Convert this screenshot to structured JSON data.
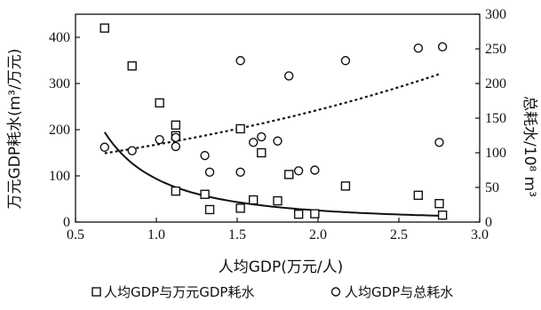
{
  "chart_data": {
    "type": "scatter",
    "xlabel": "人均GDP(万元/人)",
    "ylabel_left": "万元GDP耗水(m³/万元)",
    "ylabel_right": "总耗水/10⁸ m³",
    "xlim": [
      0.5,
      3.0
    ],
    "ylim_left": [
      0,
      450
    ],
    "ylim_right": [
      0,
      300
    ],
    "x_ticks": [
      "0.5",
      "1.0",
      "1.5",
      "2.0",
      "2.5",
      "3.0"
    ],
    "y_left_ticks": [
      "0",
      "100",
      "200",
      "300",
      "400"
    ],
    "y_right_ticks": [
      "0",
      "50",
      "100",
      "150",
      "200",
      "250",
      "300"
    ],
    "grid": false,
    "legend_position": "bottom",
    "series": [
      {
        "name": "人均GDP与万元GDP耗水",
        "axis": "left",
        "marker": "square",
        "points": [
          [
            0.68,
            420
          ],
          [
            0.85,
            338
          ],
          [
            1.02,
            258
          ],
          [
            1.12,
            210
          ],
          [
            1.12,
            187
          ],
          [
            1.12,
            67
          ],
          [
            1.3,
            60
          ],
          [
            1.33,
            27
          ],
          [
            1.52,
            202
          ],
          [
            1.52,
            30
          ],
          [
            1.6,
            48
          ],
          [
            1.65,
            150
          ],
          [
            1.75,
            46
          ],
          [
            1.82,
            103
          ],
          [
            1.88,
            17
          ],
          [
            1.98,
            18
          ],
          [
            2.17,
            78
          ],
          [
            2.62,
            58
          ],
          [
            2.75,
            40
          ],
          [
            2.77,
            15
          ]
        ]
      },
      {
        "name": "人均GDP与总耗水",
        "axis": "right",
        "marker": "circle",
        "points": [
          [
            0.68,
            108
          ],
          [
            0.85,
            103
          ],
          [
            1.02,
            119
          ],
          [
            1.12,
            122
          ],
          [
            1.12,
            109
          ],
          [
            1.3,
            96
          ],
          [
            1.33,
            72
          ],
          [
            1.52,
            233
          ],
          [
            1.52,
            72
          ],
          [
            1.6,
            115
          ],
          [
            1.65,
            123
          ],
          [
            1.75,
            117
          ],
          [
            1.82,
            211
          ],
          [
            1.88,
            74
          ],
          [
            1.98,
            75
          ],
          [
            2.17,
            233
          ],
          [
            2.62,
            251
          ],
          [
            2.75,
            115
          ],
          [
            2.77,
            253
          ]
        ]
      }
    ],
    "trendlines": [
      {
        "series": "人均GDP与万元GDP耗水",
        "axis": "left",
        "style": "solid",
        "form": "power",
        "a": 93.5,
        "b": -1.9,
        "x_range": [
          0.68,
          2.75
        ]
      },
      {
        "series": "人均GDP与总耗水",
        "axis": "right",
        "style": "dotted",
        "form": "exponential",
        "a": 77.2,
        "b": 0.37,
        "x_range": [
          0.68,
          2.75
        ]
      }
    ]
  }
}
